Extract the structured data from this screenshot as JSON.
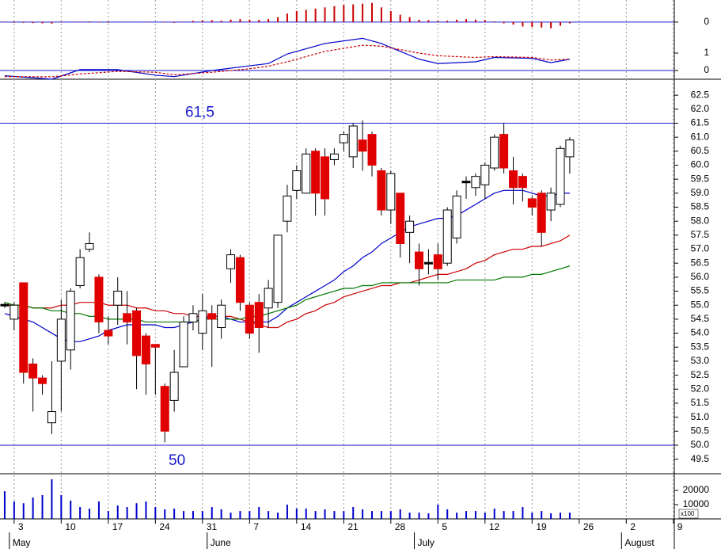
{
  "chart_data": [
    {
      "type": "bar",
      "color": "#cc0000",
      "xlim": [
        -0.5,
        71.1
      ],
      "ylim": [
        -0.39,
        0.9
      ],
      "yticks": [
        0
      ],
      "hlines": [
        0
      ],
      "values": [
        0.02,
        -0.03,
        -0.03,
        -0.04,
        -0.05,
        -0.06,
        -0.02,
        0,
        0.02,
        0.03,
        -0.02,
        -0.03,
        0,
        0.01,
        0,
        -0.01,
        0,
        -0.02,
        -0.03,
        0.02,
        0.05,
        0.07,
        0.08,
        0.06,
        0.1,
        0.12,
        0.1,
        0.09,
        0.12,
        0.2,
        0.35,
        0.45,
        0.5,
        0.55,
        0.6,
        0.65,
        0.7,
        0.72,
        0.75,
        0.78,
        0.6,
        0.45,
        0.3,
        0.2,
        0.1,
        0.08,
        0.05,
        0.06,
        0.1,
        0.12,
        0.1,
        0.08,
        0.03,
        -0.05,
        -0.1,
        -0.18,
        -0.2,
        -0.22,
        -0.25,
        -0.15,
        -0.05
      ]
    },
    {
      "type": "line",
      "xlim": [
        -0.5,
        71.1
      ],
      "ylim": [
        -0.5,
        2.23
      ],
      "yticks": [
        0,
        1
      ],
      "hlines": [
        0
      ],
      "series": [
        {
          "color": "#0000cc",
          "x": [
            0,
            5,
            8,
            12,
            16,
            18,
            22,
            26,
            28,
            30,
            34,
            38,
            40,
            44,
            46,
            50,
            52,
            56,
            58,
            60
          ],
          "values": [
            -0.3,
            -0.5,
            0.05,
            0.05,
            -0.27,
            -0.35,
            0,
            0.27,
            0.4,
            0.95,
            1.55,
            1.85,
            1.55,
            0.65,
            0.4,
            0.5,
            0.75,
            0.7,
            0.45,
            0.65
          ]
        },
        {
          "color": "#cc0000",
          "dashed": true,
          "x": [
            0,
            5,
            8,
            12,
            16,
            18,
            22,
            26,
            28,
            30,
            34,
            38,
            40,
            44,
            46,
            50,
            52,
            56,
            58,
            60
          ],
          "values": [
            -0.35,
            -0.36,
            -0.2,
            -0.05,
            -0.1,
            -0.25,
            -0.1,
            0.1,
            0.25,
            0.5,
            1.1,
            1.45,
            1.4,
            1.0,
            0.85,
            0.75,
            0.8,
            0.75,
            0.6,
            0.65
          ]
        }
      ]
    },
    {
      "type": "candlestick",
      "xlim": [
        -0.5,
        71.1
      ],
      "ylim": [
        48.98,
        63.07
      ],
      "up_color": "#ffffff",
      "down_color": "#e00000",
      "yticks": [
        49.5,
        {
          "value": 50,
          "label": "50.0"
        },
        50.5,
        {
          "value": 51,
          "label": "51.0"
        },
        51.5,
        {
          "value": 52,
          "label": "52.0"
        },
        52.5,
        {
          "value": 53,
          "label": "53.0"
        },
        53.5,
        {
          "value": 54,
          "label": "54.0"
        },
        54.5,
        {
          "value": 55,
          "label": "55.0"
        },
        55.5,
        {
          "value": 56,
          "label": "56.0"
        },
        56.5,
        {
          "value": 57,
          "label": "57.0"
        },
        57.5,
        {
          "value": 58,
          "label": "58.0"
        },
        58.5,
        {
          "value": 59,
          "label": "59.0"
        },
        59.5,
        {
          "value": 60,
          "label": "60.0"
        },
        60.5,
        {
          "value": 61,
          "label": "61.0"
        },
        61.5,
        {
          "value": 62,
          "label": "62.0"
        },
        62.5
      ],
      "hlines": [
        {
          "value": 61.5,
          "label": "61,5"
        },
        {
          "value": 50,
          "label": "50"
        }
      ],
      "open": [
        55,
        54.5,
        55.8,
        52.9,
        52.4,
        50.8,
        53.0,
        53.4,
        55.7,
        57.0,
        56.0,
        54.1,
        55.0,
        54.7,
        54.8,
        53.9,
        53.6,
        52.1,
        51.6,
        52.8,
        54.4,
        54.0,
        54.7,
        54.2,
        56.3,
        56.7,
        55.0,
        55.1,
        54.9,
        55.1,
        58.0,
        59.1,
        59.0,
        60.5,
        60.3,
        60.2,
        60.8,
        60.3,
        60.9,
        61.1,
        59.8,
        58.4,
        59.0,
        57.6,
        56.9,
        56.5,
        56.8,
        56.5,
        57.4,
        59.4,
        59.2,
        59.3,
        59.9,
        61.1,
        59.8,
        59.6,
        58.8,
        59.0,
        58.4,
        58.6,
        60.3
      ],
      "high": [
        55.1,
        55.1,
        55.8,
        53.1,
        52.5,
        53.0,
        55.2,
        55.6,
        57.0,
        57.6,
        56.1,
        54.6,
        56.0,
        55.5,
        54.9,
        54.0,
        53.6,
        52.2,
        53.4,
        54.6,
        55.0,
        55.4,
        55.0,
        55.2,
        57.0,
        56.8,
        55.1,
        55.4,
        55.9,
        57.5,
        59.3,
        60.0,
        60.6,
        60.6,
        60.6,
        60.6,
        61.2,
        61.5,
        61.6,
        61.2,
        59.9,
        59.8,
        59.0,
        58.2,
        57.2,
        57.0,
        57.2,
        58.5,
        59.1,
        59.6,
        59.7,
        60.1,
        61.1,
        61.5,
        60.3,
        59.7,
        58.9,
        59.1,
        59.2,
        60.7,
        61.0
      ],
      "low": [
        54.9,
        54.1,
        52.2,
        51.2,
        51.8,
        50.4,
        51.2,
        52.7,
        55.6,
        56.9,
        54.0,
        53.6,
        54.3,
        53.6,
        52.0,
        51.8,
        51.8,
        50.1,
        51.2,
        52.8,
        54.1,
        53.4,
        52.8,
        53.8,
        55.8,
        54.8,
        53.8,
        53.3,
        54.2,
        54.9,
        57.6,
        58.8,
        59.0,
        58.2,
        58.2,
        60.0,
        60.5,
        59.9,
        59.8,
        59.6,
        58.2,
        57.9,
        56.7,
        56.5,
        55.7,
        56.1,
        55.9,
        56.4,
        57.2,
        58.8,
        58.9,
        58.8,
        59.8,
        59.7,
        58.6,
        58.7,
        58.2,
        57.1,
        58.0,
        58.5,
        59.7
      ],
      "close": [
        55,
        55.0,
        52.6,
        52.4,
        52.2,
        51.2,
        54.5,
        55.5,
        56.7,
        57.2,
        54.4,
        53.9,
        55.5,
        54.4,
        53.2,
        52.9,
        53.5,
        50.5,
        52.6,
        54.4,
        54.7,
        54.8,
        54.5,
        55.0,
        56.8,
        55.1,
        54.0,
        54.2,
        55.6,
        57.5,
        58.9,
        59.8,
        60.4,
        59.0,
        58.8,
        60.4,
        61.1,
        61.4,
        60.5,
        60.0,
        58.4,
        59.7,
        57.2,
        58.0,
        56.3,
        56.5,
        56.3,
        58.4,
        58.9,
        59.4,
        59.6,
        60.0,
        61.0,
        59.9,
        59.2,
        59.2,
        58.5,
        57.6,
        59.0,
        60.6,
        60.9
      ],
      "series": [
        {
          "color": "#0000cc",
          "values": [
            54.7,
            54.6,
            54.5,
            54.4,
            54.2,
            54.0,
            53.8,
            53.7,
            53.7,
            53.8,
            53.9,
            54.1,
            54.2,
            54.3,
            54.3,
            54.3,
            54.3,
            54.2,
            54.2,
            54.3,
            54.4,
            54.5,
            54.6,
            54.6,
            54.5,
            54.4,
            54.4,
            54.4,
            54.4,
            54.6,
            54.9,
            55.1,
            55.3,
            55.5,
            55.7,
            55.9,
            56.2,
            56.4,
            56.7,
            56.9,
            57.2,
            57.4,
            57.6,
            57.8,
            57.9,
            58.0,
            58.1,
            58.1,
            58.2,
            58.4,
            58.6,
            58.8,
            59.0,
            59.1,
            59.1,
            59.1,
            59.0,
            58.9,
            58.9,
            59.0,
            59.0
          ]
        },
        {
          "color": "#cc0000",
          "values": [
            55.0,
            55.0,
            55.0,
            54.9,
            54.9,
            54.9,
            55.0,
            55.0,
            55.1,
            55.1,
            55.1,
            55.0,
            55.0,
            55.0,
            54.9,
            54.9,
            54.8,
            54.8,
            54.7,
            54.7,
            54.6,
            54.6,
            54.6,
            54.6,
            54.6,
            54.5,
            54.4,
            54.3,
            54.2,
            54.2,
            54.4,
            54.5,
            54.7,
            54.8,
            55.0,
            55.1,
            55.3,
            55.4,
            55.5,
            55.6,
            55.7,
            55.7,
            55.8,
            55.8,
            55.9,
            56.0,
            56.1,
            56.1,
            56.2,
            56.3,
            56.5,
            56.6,
            56.8,
            56.9,
            57.0,
            57.0,
            57.1,
            57.1,
            57.2,
            57.3,
            57.5
          ]
        },
        {
          "color": "#007700",
          "values": [
            55.1,
            55.0,
            55.0,
            54.9,
            54.9,
            54.8,
            54.8,
            54.7,
            54.7,
            54.6,
            54.6,
            54.5,
            54.5,
            54.5,
            54.5,
            54.4,
            54.4,
            54.4,
            54.4,
            54.4,
            54.4,
            54.5,
            54.5,
            54.5,
            54.5,
            54.5,
            54.6,
            54.6,
            54.7,
            54.8,
            54.9,
            55.0,
            55.2,
            55.3,
            55.4,
            55.5,
            55.6,
            55.6,
            55.7,
            55.7,
            55.8,
            55.8,
            55.8,
            55.8,
            55.8,
            55.8,
            55.8,
            55.8,
            55.9,
            55.9,
            55.9,
            55.9,
            55.9,
            56.0,
            56.0,
            56.0,
            56.1,
            56.1,
            56.2,
            56.3,
            56.4
          ]
        }
      ]
    },
    {
      "type": "bar",
      "color": "#0000cc",
      "xlim": [
        -0.5,
        71.1
      ],
      "ylim": [
        0,
        30000
      ],
      "yticks": [
        10000,
        20000
      ],
      "unit_label": "x100",
      "values": [
        19400,
        12200,
        11000,
        15000,
        16700,
        27800,
        16700,
        12800,
        8300,
        7200,
        12200,
        5500,
        9400,
        8300,
        11000,
        12200,
        8300,
        6700,
        7200,
        5500,
        5500,
        5500,
        8300,
        6700,
        4400,
        5500,
        5500,
        8300,
        5500,
        4400,
        10000,
        7200,
        7200,
        5500,
        6700,
        5500,
        5500,
        8300,
        6700,
        5500,
        5500,
        5500,
        6700,
        4400,
        4400,
        3900,
        10000,
        6700,
        4400,
        5500,
        5500,
        4400,
        7200,
        5500,
        5500,
        8300,
        4400,
        5500,
        3900,
        4400,
        4400
      ],
      "xticks": [
        {
          "value": 1,
          "label": "3"
        },
        {
          "value": 6,
          "label": "10"
        },
        {
          "value": 11,
          "label": "17"
        },
        {
          "value": 16,
          "label": "24"
        },
        {
          "value": 21,
          "label": "31"
        },
        {
          "value": 26,
          "label": "7"
        },
        {
          "value": 31,
          "label": "14"
        },
        {
          "value": 36,
          "label": "21"
        },
        {
          "value": 41,
          "label": "28"
        },
        {
          "value": 46,
          "label": "5"
        },
        {
          "value": 51,
          "label": "12"
        },
        {
          "value": 56,
          "label": "19"
        },
        {
          "value": 61,
          "label": "26"
        },
        {
          "value": 66,
          "label": "2"
        },
        {
          "value": 71,
          "label": "9"
        }
      ],
      "month_ticks": [
        {
          "value": 1,
          "label": "May"
        },
        {
          "value": 22,
          "label": "June"
        },
        {
          "value": 44,
          "label": "July"
        },
        {
          "value": 66,
          "label": "August"
        }
      ]
    }
  ]
}
